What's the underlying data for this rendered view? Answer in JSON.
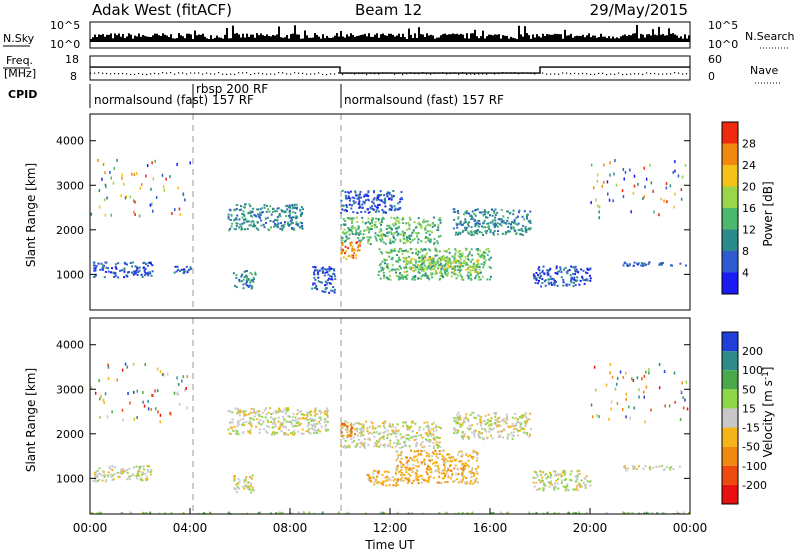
{
  "header": {
    "station": "Adak West (fitACF)",
    "beam": "Beam 12",
    "date": "29/May/2015"
  },
  "noise_panel": {
    "left_label": "N.Sky",
    "right_label": "N.Search",
    "tick_top": "10^5",
    "tick_bottom": "10^0"
  },
  "freq_panel": {
    "left_label_1": "Freq.",
    "left_label_2": "[MHz]",
    "right_label": "Nave",
    "left_ticks": [
      "18",
      "8"
    ],
    "right_ticks": [
      "60",
      "0"
    ],
    "freq_mhz": [
      {
        "from_hour": 0,
        "to_hour": 10,
        "value": 13.4
      },
      {
        "from_hour": 10,
        "to_hour": 18,
        "value": 10.9
      },
      {
        "from_hour": 18,
        "to_hour": 24,
        "value": 13.4
      }
    ]
  },
  "cpid": {
    "label": "CPID",
    "segments": [
      {
        "start_hour": 0,
        "end_hour": 4,
        "text": "normalsound (fast) 157 RF"
      },
      {
        "start_hour": 4,
        "end_hour": 10,
        "text": "rbsp 200 RF"
      },
      {
        "start_hour": 10,
        "end_hour": 24,
        "text": "normalsound (fast) 157 RF"
      }
    ]
  },
  "chart_data": [
    {
      "type": "heatmap",
      "quantity": "power",
      "ylabel": "Slant Range [km]",
      "ylim": [
        200,
        4600
      ],
      "xlim": [
        0,
        24
      ],
      "yticks": [
        1000,
        2000,
        3000,
        4000
      ],
      "colorbar": {
        "label": "Power [dB]",
        "ticks": [
          "4",
          "8",
          "12",
          "16",
          "20",
          "24",
          "28"
        ],
        "colors": [
          "#1b1bf5",
          "#2e5bd0",
          "#2b8a8a",
          "#4cb86e",
          "#9ad64a",
          "#f5c21a",
          "#f28a10",
          "#ee2a10"
        ]
      },
      "regions": [
        {
          "x": [
            0.1,
            2.5
          ],
          "y": [
            950,
            1300
          ],
          "level": 1
        },
        {
          "x": [
            3.3,
            4.1
          ],
          "y": [
            1050,
            1200
          ],
          "level": 1
        },
        {
          "x": [
            5.7,
            6.6
          ],
          "y": [
            700,
            1100
          ],
          "level": 2
        },
        {
          "x": [
            5.5,
            8.5
          ],
          "y": [
            2000,
            2600
          ],
          "level": 2
        },
        {
          "x": [
            8.8,
            9.8
          ],
          "y": [
            600,
            1200
          ],
          "level": 1
        },
        {
          "x": [
            10.0,
            14.0
          ],
          "y": [
            1700,
            2300
          ],
          "level": 3
        },
        {
          "x": [
            10.0,
            10.8
          ],
          "y": [
            1350,
            1750
          ],
          "level": 6
        },
        {
          "x": [
            11.5,
            16.0
          ],
          "y": [
            900,
            1600
          ],
          "level": 3
        },
        {
          "x": [
            12.5,
            15.5
          ],
          "y": [
            1050,
            1400
          ],
          "level": 4
        },
        {
          "x": [
            14.5,
            17.6
          ],
          "y": [
            1900,
            2500
          ],
          "level": 2
        },
        {
          "x": [
            17.7,
            20.0
          ],
          "y": [
            750,
            1200
          ],
          "level": 1
        },
        {
          "x": [
            21.3,
            23.8
          ],
          "y": [
            1200,
            1300
          ],
          "level": 1
        },
        {
          "x": [
            10.0,
            12.5
          ],
          "y": [
            2400,
            2900
          ],
          "level": 1
        }
      ]
    },
    {
      "type": "heatmap",
      "quantity": "velocity",
      "xlabel": "Time UT",
      "ylabel": "Slant Range [km]",
      "ylim": [
        200,
        4600
      ],
      "xlim": [
        0,
        24
      ],
      "yticks": [
        1000,
        2000,
        3000,
        4000
      ],
      "xticks": [
        "00:00",
        "04:00",
        "08:00",
        "12:00",
        "16:00",
        "20:00",
        "00:00"
      ],
      "colorbar": {
        "label": "Velocity [m s-1]",
        "ticks": [
          "200",
          "100",
          "50",
          "15",
          "-15",
          "-50",
          "-100",
          "-200"
        ],
        "colors": [
          "#1f3fd8",
          "#2f8a8a",
          "#48a84a",
          "#8ed64a",
          "#c8c8c8",
          "#f5b51a",
          "#f28a10",
          "#ee4a10",
          "#e81010"
        ]
      },
      "regions": [
        {
          "x": [
            0.1,
            2.5
          ],
          "y": [
            950,
            1300
          ],
          "level": 4
        },
        {
          "x": [
            5.5,
            9.5
          ],
          "y": [
            2000,
            2600
          ],
          "level": 4
        },
        {
          "x": [
            5.7,
            6.6
          ],
          "y": [
            700,
            1100
          ],
          "level": 4
        },
        {
          "x": [
            10.0,
            14.0
          ],
          "y": [
            1700,
            2300
          ],
          "level": 4
        },
        {
          "x": [
            10.0,
            10.6
          ],
          "y": [
            1950,
            2250
          ],
          "level": 6
        },
        {
          "x": [
            12.2,
            15.5
          ],
          "y": [
            900,
            1650
          ],
          "level": 5
        },
        {
          "x": [
            11.0,
            12.5
          ],
          "y": [
            850,
            1200
          ],
          "level": 5
        },
        {
          "x": [
            14.5,
            17.6
          ],
          "y": [
            1900,
            2500
          ],
          "level": 4
        },
        {
          "x": [
            17.7,
            20.0
          ],
          "y": [
            750,
            1200
          ],
          "level": 4
        },
        {
          "x": [
            21.3,
            23.8
          ],
          "y": [
            1200,
            1300
          ],
          "level": 4
        },
        {
          "x": [
            0,
            24
          ],
          "y": [
            200,
            260
          ],
          "level": 3
        }
      ]
    }
  ]
}
